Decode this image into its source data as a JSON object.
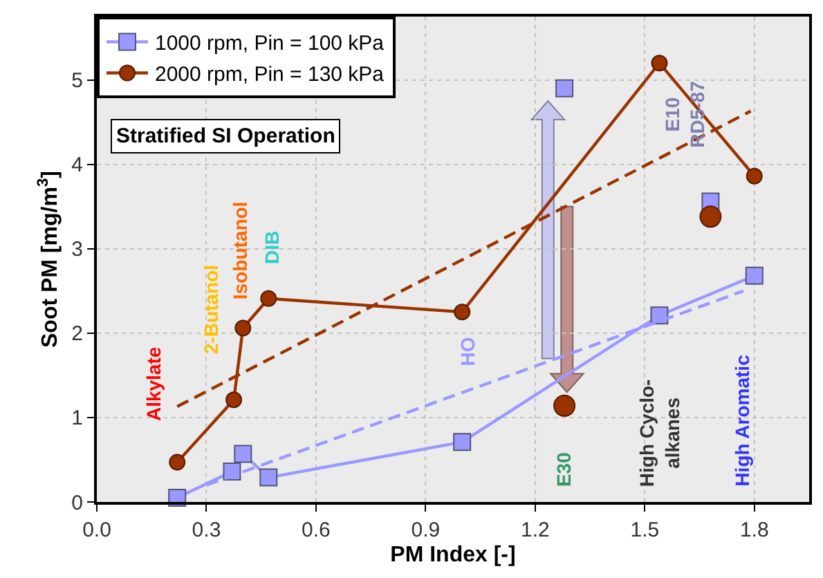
{
  "chart_data": {
    "type": "line",
    "xlabel": "PM Index [-]",
    "ylabel": "Soot PM [mg/m$^{3}$]",
    "xlim": [
      0,
      1.95
    ],
    "ylim": [
      0,
      5.75
    ],
    "xticks": [
      {
        "value": 0,
        "label": "0.0"
      },
      0.3,
      0.6,
      0.9,
      1.2,
      1.5,
      1.8
    ],
    "yticks": [
      0,
      1,
      2,
      3,
      4,
      5
    ],
    "grid": true,
    "legend": "top left",
    "series": [
      {
        "name": "1000 rpm, Pin = 100 kPa",
        "type": "line",
        "color": "#9999ff",
        "marker": "square",
        "line_style": "solid",
        "x": [
          0.22,
          0.37,
          0.4,
          0.47,
          1.0,
          1.54,
          1.8
        ],
        "values": [
          0.05,
          0.36,
          0.57,
          0.29,
          0.71,
          2.21,
          2.68
        ]
      },
      {
        "name": "2000 rpm, Pin = 130 kPa",
        "type": "line",
        "color": "#993300",
        "marker": "circle",
        "line_style": "solid",
        "x": [
          0.22,
          0.375,
          0.4,
          0.47,
          1.0,
          1.54,
          1.8
        ],
        "values": [
          0.47,
          1.21,
          2.06,
          2.41,
          2.25,
          5.2,
          3.86
        ]
      },
      {
        "type": "scatter",
        "color": "#9999ff",
        "marker": "square",
        "x": [
          1.28,
          1.68
        ],
        "values": [
          4.9,
          3.56
        ]
      },
      {
        "type": "scatter",
        "color": "#993300",
        "marker": "circle",
        "x": [
          1.28,
          1.68
        ],
        "values": [
          1.14,
          3.38
        ]
      },
      {
        "type": "line",
        "color": "#993300",
        "marker": "none",
        "line_style": "dashed",
        "x": [
          0.22,
          1.79
        ],
        "values": [
          1.13,
          4.63
        ]
      },
      {
        "type": "line",
        "color": "#9999ff",
        "marker": "none",
        "line_style": "dashed",
        "x": [
          0.3,
          1.77
        ],
        "values": [
          0.2,
          2.5
        ]
      }
    ],
    "annotations": [
      "Stratified SI Operation",
      "Alkylate",
      "2-Butanol",
      "Isobutanol",
      "DIB",
      "HO",
      "E30",
      "High Cyclo-\nalkanes",
      "High Aromatic",
      "E10\nRD5-87"
    ]
  }
}
